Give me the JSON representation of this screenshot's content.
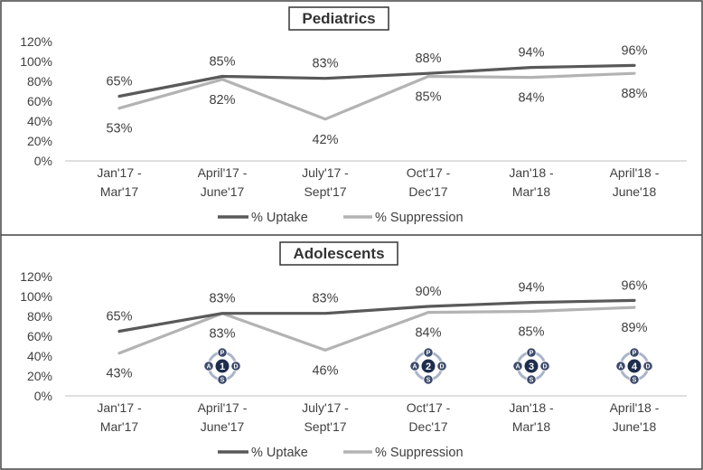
{
  "chart_data": [
    {
      "type": "line",
      "title": "Pediatrics",
      "categories": [
        [
          "Jan'17 -",
          "Mar'17"
        ],
        [
          "April'17 -",
          "June'17"
        ],
        [
          "July'17 -",
          "Sept'17"
        ],
        [
          "Oct'17 -",
          "Dec'17"
        ],
        [
          "Jan'18 -",
          "Mar'18"
        ],
        [
          "April'18 -",
          "June'18"
        ]
      ],
      "ylim": [
        0,
        120
      ],
      "yticks": [
        0,
        20,
        40,
        60,
        80,
        100,
        120
      ],
      "ytick_labels": [
        "0%",
        "20%",
        "40%",
        "60%",
        "80%",
        "100%",
        "120%"
      ],
      "series": [
        {
          "name": "% Uptake",
          "color": "#595959",
          "values": [
            65,
            85,
            83,
            88,
            94,
            96
          ],
          "labels": [
            "65%",
            "85%",
            "83%",
            "88%",
            "94%",
            "96%"
          ],
          "label_pos": [
            "above",
            "above",
            "above",
            "above",
            "above",
            "above"
          ]
        },
        {
          "name": "% Suppression",
          "color": "#b3b3b3",
          "values": [
            53,
            82,
            42,
            85,
            84,
            88
          ],
          "labels": [
            "53%",
            "82%",
            "42%",
            "85%",
            "84%",
            "88%"
          ],
          "label_pos": [
            "below",
            "below",
            "below",
            "below",
            "below",
            "below"
          ]
        }
      ],
      "legend_position": "bottom",
      "pdsa_markers": []
    },
    {
      "type": "line",
      "title": "Adolescents",
      "categories": [
        [
          "Jan'17 -",
          "Mar'17"
        ],
        [
          "April'17 -",
          "June'17"
        ],
        [
          "July'17 -",
          "Sept'17"
        ],
        [
          "Oct'17 -",
          "Dec'17"
        ],
        [
          "Jan'18 -",
          "Mar'18"
        ],
        [
          "April'18 -",
          "June'18"
        ]
      ],
      "ylim": [
        0,
        120
      ],
      "yticks": [
        0,
        20,
        40,
        60,
        80,
        100,
        120
      ],
      "ytick_labels": [
        "0%",
        "20%",
        "40%",
        "60%",
        "80%",
        "100%",
        "120%"
      ],
      "series": [
        {
          "name": "% Uptake",
          "color": "#595959",
          "values": [
            65,
            83,
            83,
            90,
            94,
            96
          ],
          "labels": [
            "65%",
            "83%",
            "83%",
            "90%",
            "94%",
            "96%"
          ],
          "label_pos": [
            "above",
            "above",
            "above",
            "above",
            "above",
            "above"
          ]
        },
        {
          "name": "% Suppression",
          "color": "#b3b3b3",
          "values": [
            43,
            83,
            46,
            84,
            85,
            89
          ],
          "labels": [
            "43%",
            "83%",
            "46%",
            "84%",
            "85%",
            "89%"
          ],
          "label_pos": [
            "below",
            "below",
            "below",
            "below",
            "below",
            "below"
          ]
        }
      ],
      "legend_position": "bottom",
      "pdsa_markers": [
        {
          "category_index": 1,
          "number": "1"
        },
        {
          "category_index": 3,
          "number": "2"
        },
        {
          "category_index": 4,
          "number": "3"
        },
        {
          "category_index": 5,
          "number": "4"
        }
      ],
      "pdsa_letters": {
        "top": "P",
        "left": "A",
        "right": "D",
        "bottom": "S"
      }
    }
  ]
}
